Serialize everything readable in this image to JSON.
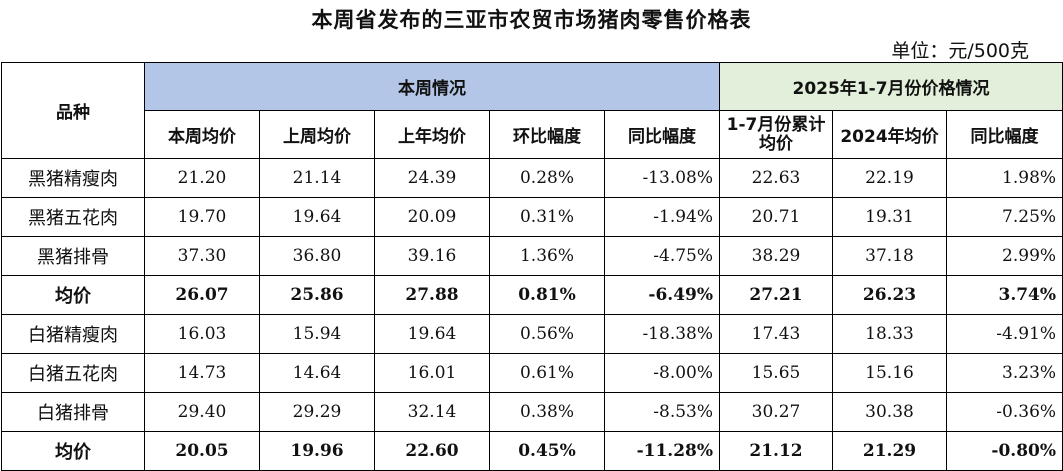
{
  "title": "本周省发布的三亚市农贸市场猪肉零售价格表",
  "unit": "单位：元/500克",
  "header": {
    "variety": "品种",
    "this_week_group": "本周情况",
    "ytd_group": "2025年1-7月份价格情况",
    "cols": [
      "本周均价",
      "上周均价",
      "上年均价",
      "环比幅度",
      "同比幅度",
      "1-7月份累计均价",
      "2024年均价",
      "同比幅度"
    ]
  },
  "rows": [
    {
      "name": "黑猪精瘦肉",
      "v": [
        "21.20",
        "21.14",
        "24.39",
        "0.28%",
        "-13.08%",
        "22.63",
        "22.19",
        "1.98%"
      ]
    },
    {
      "name": "黑猪五花肉",
      "v": [
        "19.70",
        "19.64",
        "20.09",
        "0.31%",
        "-1.94%",
        "20.71",
        "19.31",
        "7.25%"
      ]
    },
    {
      "name": "黑猪排骨",
      "v": [
        "37.30",
        "36.80",
        "39.16",
        "1.36%",
        "-4.75%",
        "38.29",
        "37.18",
        "2.99%"
      ]
    },
    {
      "name": "均价",
      "v": [
        "26.07",
        "25.86",
        "27.88",
        "0.81%",
        "-6.49%",
        "27.21",
        "26.23",
        "3.74%"
      ]
    },
    {
      "name": "白猪精瘦肉",
      "v": [
        "16.03",
        "15.94",
        "19.64",
        "0.56%",
        "-18.38%",
        "17.43",
        "18.33",
        "-4.91%"
      ]
    },
    {
      "name": "白猪五花肉",
      "v": [
        "14.73",
        "14.64",
        "16.01",
        "0.61%",
        "-8.00%",
        "15.65",
        "15.16",
        "3.23%"
      ]
    },
    {
      "name": "白猪排骨",
      "v": [
        "29.40",
        "29.29",
        "32.14",
        "0.38%",
        "-8.53%",
        "30.27",
        "30.38",
        "-0.36%"
      ]
    },
    {
      "name": "均价",
      "v": [
        "20.05",
        "19.96",
        "22.60",
        "0.45%",
        "-11.28%",
        "21.12",
        "21.29",
        "-0.80%"
      ]
    }
  ]
}
